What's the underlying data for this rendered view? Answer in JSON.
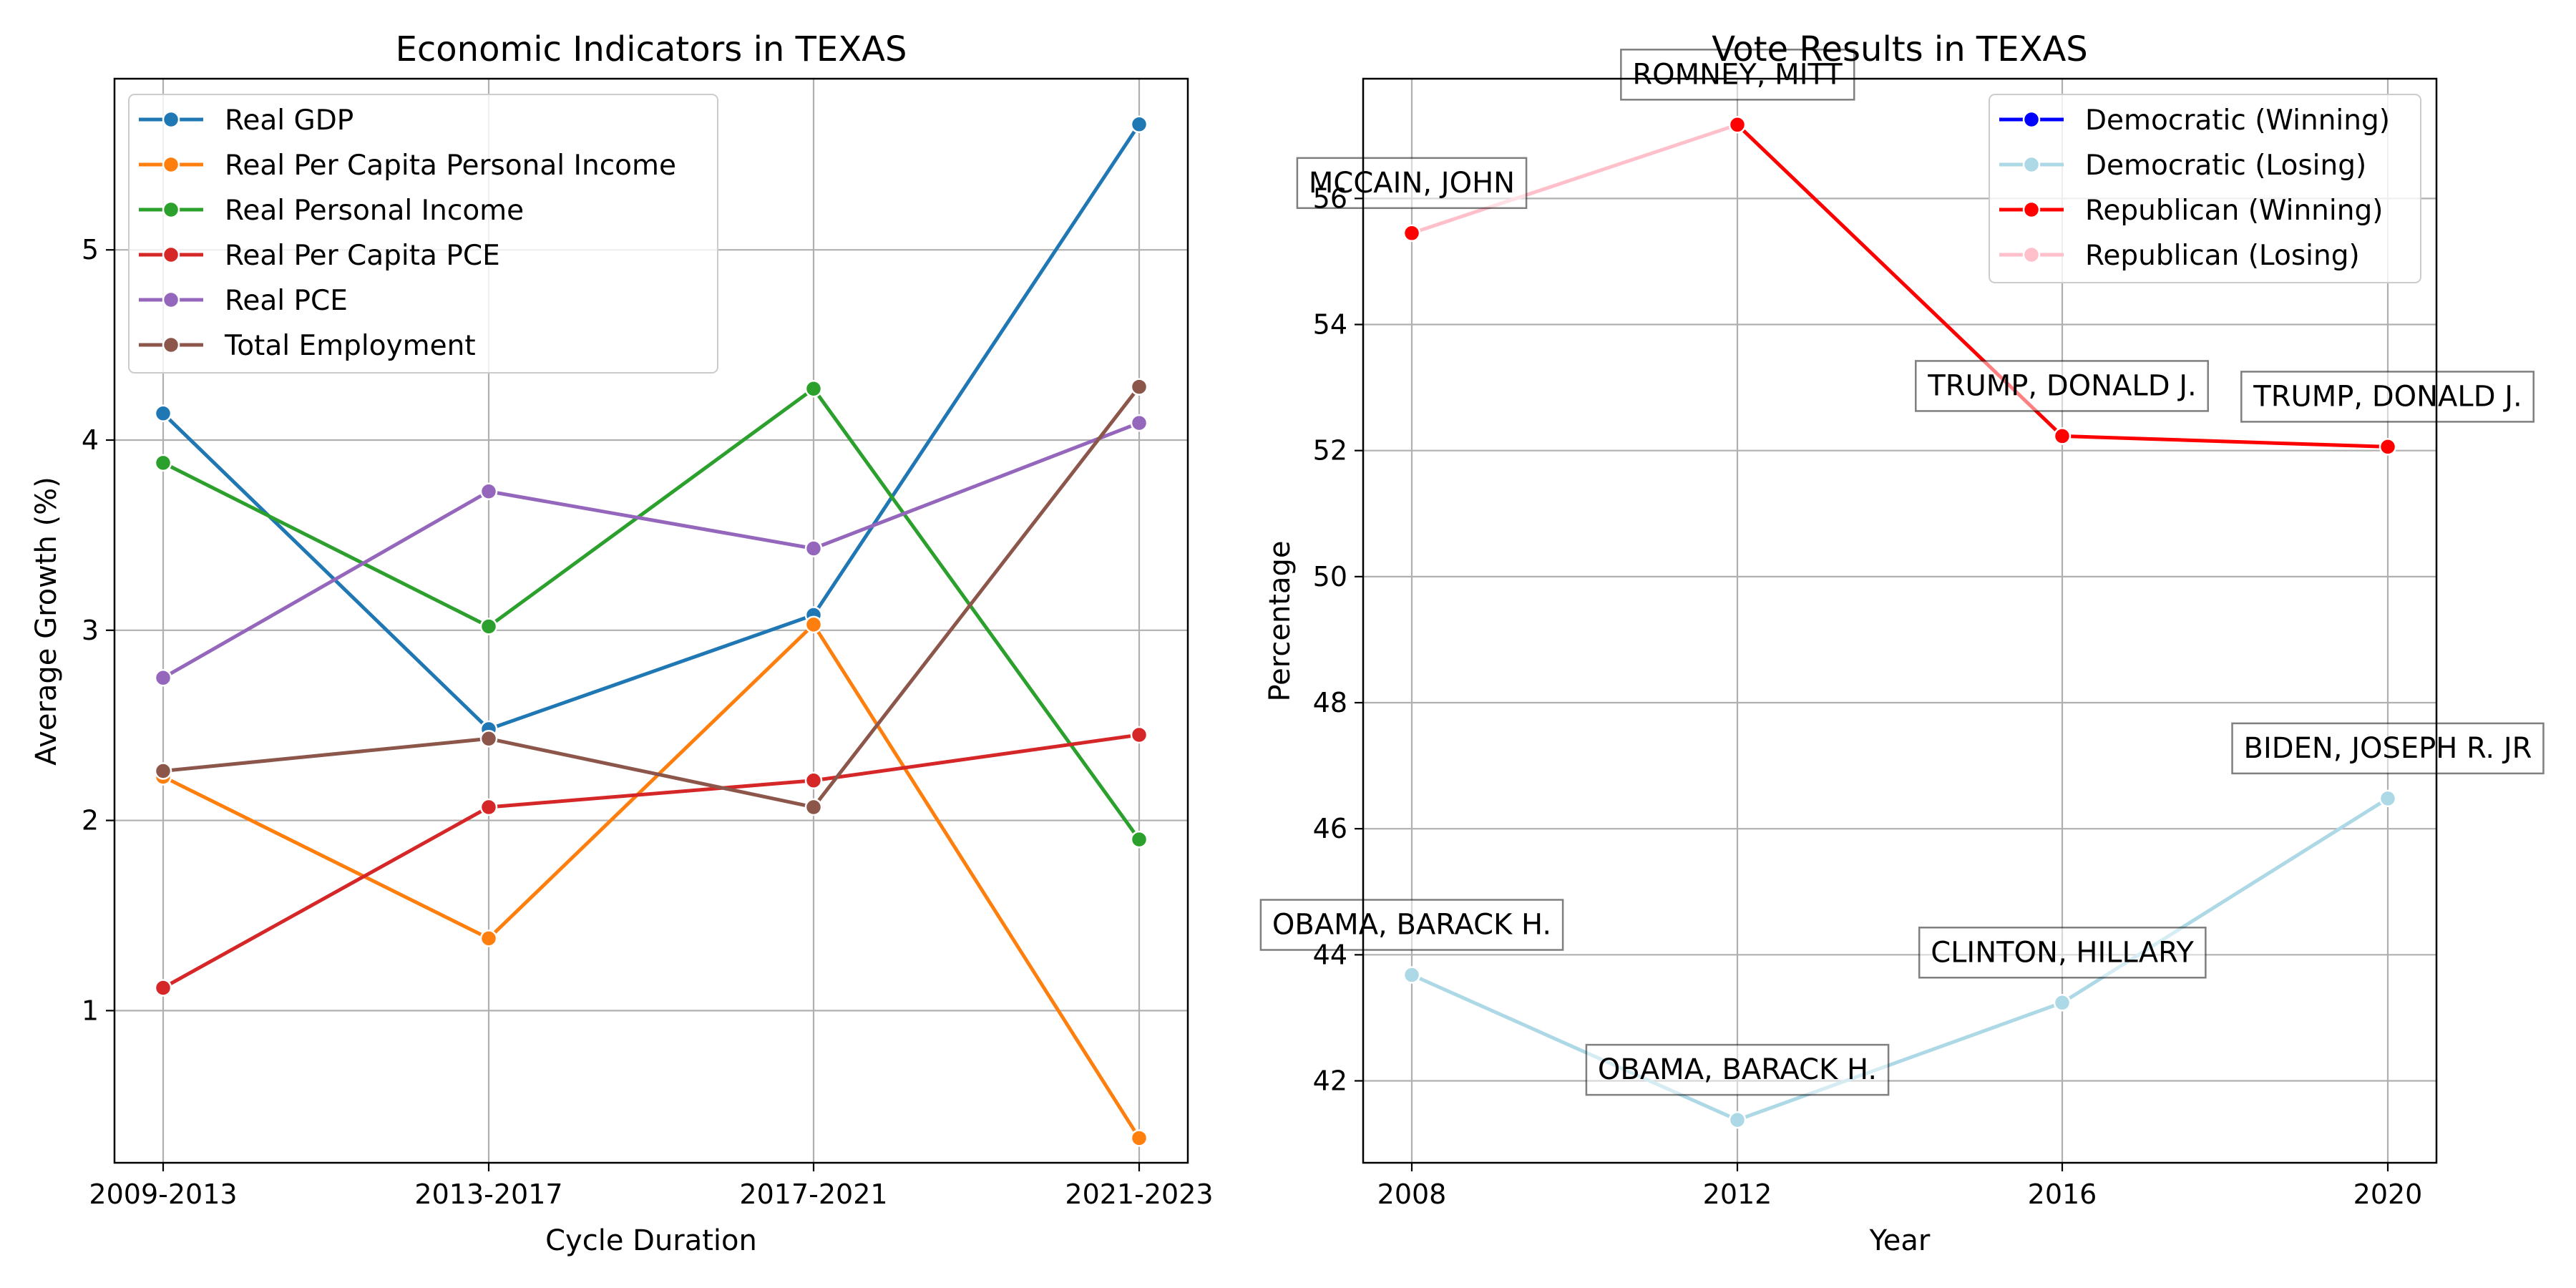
{
  "chart_data": [
    {
      "type": "line",
      "title": "Economic Indicators in TEXAS",
      "xlabel": "Cycle Duration",
      "ylabel": "Average Growth (%)",
      "categories": [
        "2009-2013",
        "2013-2017",
        "2017-2021",
        "2021-2023"
      ],
      "ylim": [
        0.2,
        5.9
      ],
      "yticks": [
        "1",
        "2",
        "3",
        "4",
        "5"
      ],
      "grid": true,
      "legend_position": "top-left",
      "series": [
        {
          "name": "Real GDP",
          "color": "#1f77b4",
          "values": [
            4.14,
            2.48,
            3.08,
            5.66
          ]
        },
        {
          "name": "Real Per Capita Personal Income",
          "color": "#ff7f0e",
          "values": [
            2.23,
            1.38,
            3.03,
            0.33
          ]
        },
        {
          "name": "Real Personal Income",
          "color": "#2ca02c",
          "values": [
            3.88,
            3.02,
            4.27,
            1.9
          ]
        },
        {
          "name": "Real Per Capita PCE",
          "color": "#d62728",
          "values": [
            1.12,
            2.07,
            2.21,
            2.45
          ]
        },
        {
          "name": "Real PCE",
          "color": "#9467bd",
          "values": [
            2.75,
            3.73,
            3.43,
            4.09
          ]
        },
        {
          "name": "Total Employment",
          "color": "#8c564b",
          "values": [
            2.26,
            2.43,
            2.07,
            4.28
          ]
        }
      ]
    },
    {
      "type": "line",
      "title": "Vote Results in TEXAS",
      "xlabel": "Year",
      "ylabel": "Percentage",
      "x": [
        2008,
        2012,
        2016,
        2020
      ],
      "xticks": [
        "2008",
        "2012",
        "2016",
        "2020"
      ],
      "ylim": [
        40.7,
        57.9
      ],
      "yticks": [
        "42",
        "44",
        "46",
        "48",
        "50",
        "52",
        "54",
        "56"
      ],
      "grid": true,
      "legend_position": "top-right",
      "legend": [
        {
          "name": "Democratic (Winning)",
          "color": "#0000ff"
        },
        {
          "name": "Democratic (Losing)",
          "color": "#add8e6"
        },
        {
          "name": "Republican (Winning)",
          "color": "#ff0000"
        },
        {
          "name": "Republican (Losing)",
          "color": "#ffc0cb"
        }
      ],
      "series": [
        {
          "name": "Republican (Winning)",
          "color": "#ff0000",
          "values": [
            55.45,
            57.17,
            52.23,
            52.06
          ],
          "labels": [
            "MCCAIN, JOHN",
            "ROMNEY, MITT",
            "TRUMP, DONALD J.",
            "TRUMP, DONALD J."
          ],
          "segment_colors": [
            "#ffc0cb",
            "#ff0000",
            "#ff0000"
          ]
        },
        {
          "name": "Democratic (Losing)",
          "color": "#add8e6",
          "values": [
            43.68,
            41.38,
            43.24,
            46.48
          ],
          "labels": [
            "OBAMA, BARACK H.",
            "OBAMA, BARACK H.",
            "CLINTON, HILLARY",
            "BIDEN, JOSEPH R. JR"
          ]
        }
      ]
    }
  ]
}
